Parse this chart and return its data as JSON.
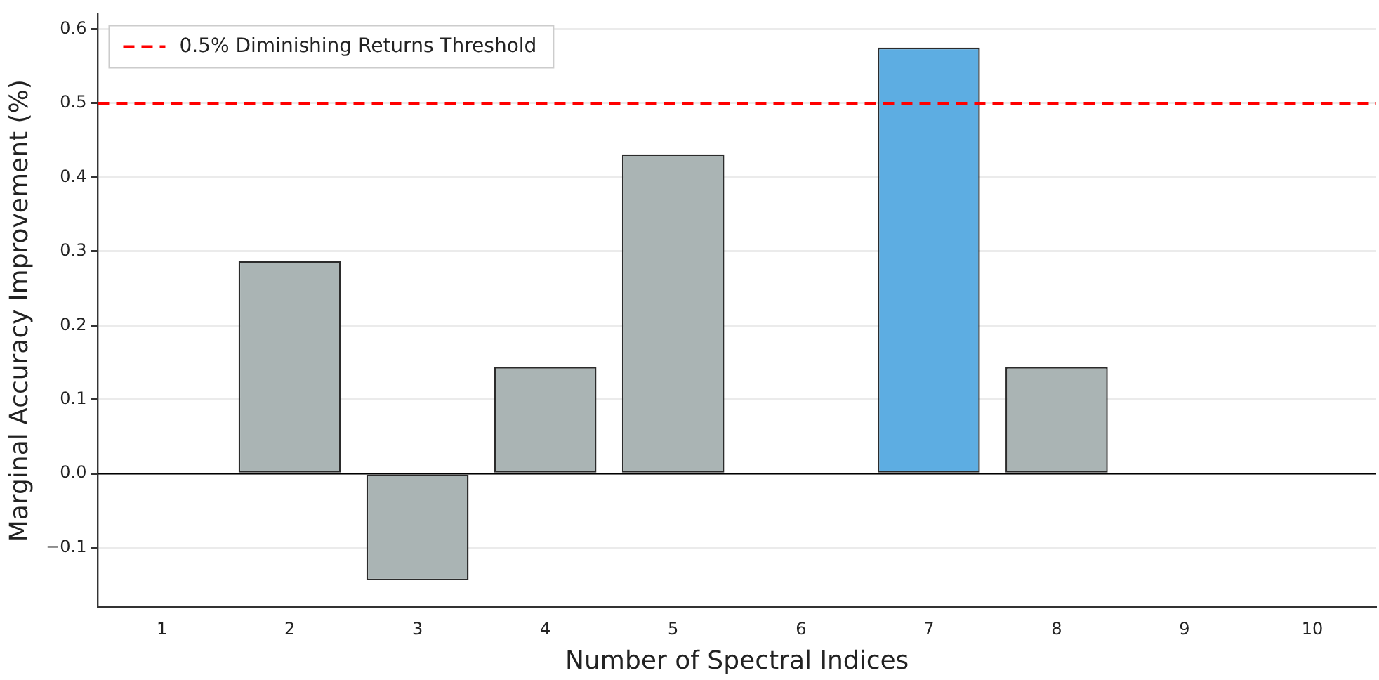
{
  "chart_data": {
    "type": "bar",
    "xlabel": "Number of Spectral Indices",
    "ylabel": "Marginal Accuracy Improvement (%)",
    "categories": [
      "1",
      "2",
      "3",
      "4",
      "5",
      "6",
      "7",
      "8",
      "9",
      "10"
    ],
    "values": [
      0,
      0.287,
      -0.144,
      0.144,
      0.431,
      0,
      0.575,
      0.144,
      0,
      0
    ],
    "colors": [
      "#aab4b4",
      "#aab4b4",
      "#aab4b4",
      "#aab4b4",
      "#aab4b4",
      "#aab4b4",
      "#5dade2",
      "#aab4b4",
      "#aab4b4",
      "#aab4b4"
    ],
    "ylim": [
      -0.18,
      0.62
    ],
    "yticks": [
      {
        "value": -0.1,
        "label": "−0.1"
      },
      {
        "value": 0,
        "label": "0.0"
      },
      {
        "value": 0.1,
        "label": "0.1"
      },
      {
        "value": 0.2,
        "label": "0.2"
      },
      {
        "value": 0.3,
        "label": "0.3"
      },
      {
        "value": 0.4,
        "label": "0.4"
      },
      {
        "value": 0.5,
        "label": "0.5"
      },
      {
        "value": 0.6,
        "label": "0.6"
      }
    ],
    "grid": "y",
    "legend": "top left",
    "ref_lines": [
      {
        "axis": "y",
        "value": 0.5,
        "label": "0.5% Diminishing Returns Threshold",
        "color": "#ff0000",
        "line_style": "dashed"
      },
      {
        "axis": "y",
        "value": 0,
        "color": "#000000",
        "line_style": "solid"
      }
    ]
  }
}
